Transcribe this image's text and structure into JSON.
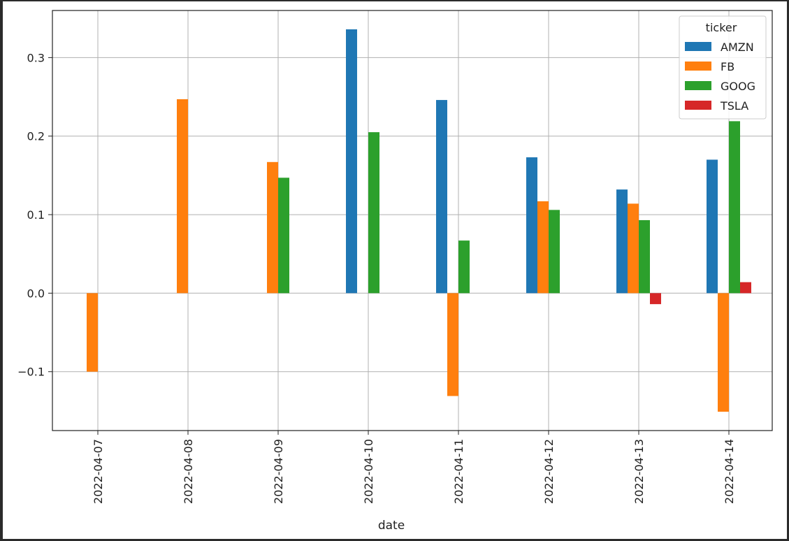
{
  "chart_data": {
    "type": "bar",
    "xlabel": "date",
    "ylabel": "",
    "ylim": [
      -0.175,
      0.36
    ],
    "yticks": [
      -0.1,
      0.0,
      0.1,
      0.2,
      0.3
    ],
    "ytick_labels": [
      "−0.1",
      "0.0",
      "0.1",
      "0.2",
      "0.3"
    ],
    "grid": true,
    "legend": {
      "title": "ticker",
      "placement": "top-right"
    },
    "categories": [
      "2022-04-07",
      "2022-04-08",
      "2022-04-09",
      "2022-04-10",
      "2022-04-11",
      "2022-04-12",
      "2022-04-13",
      "2022-04-14"
    ],
    "series": [
      {
        "name": "AMZN",
        "color": "#1f77b4",
        "values": [
          null,
          null,
          null,
          0.336,
          0.246,
          0.173,
          0.132,
          0.17
        ]
      },
      {
        "name": "FB",
        "color": "#ff7f0e",
        "values": [
          -0.1,
          0.247,
          0.167,
          null,
          -0.131,
          0.117,
          0.114,
          -0.151
        ]
      },
      {
        "name": "GOOG",
        "color": "#2ca02c",
        "values": [
          null,
          null,
          0.147,
          0.205,
          0.067,
          0.106,
          0.093,
          0.219
        ]
      },
      {
        "name": "TSLA",
        "color": "#d62728",
        "values": [
          null,
          null,
          null,
          null,
          null,
          null,
          -0.014,
          0.014
        ]
      }
    ]
  }
}
